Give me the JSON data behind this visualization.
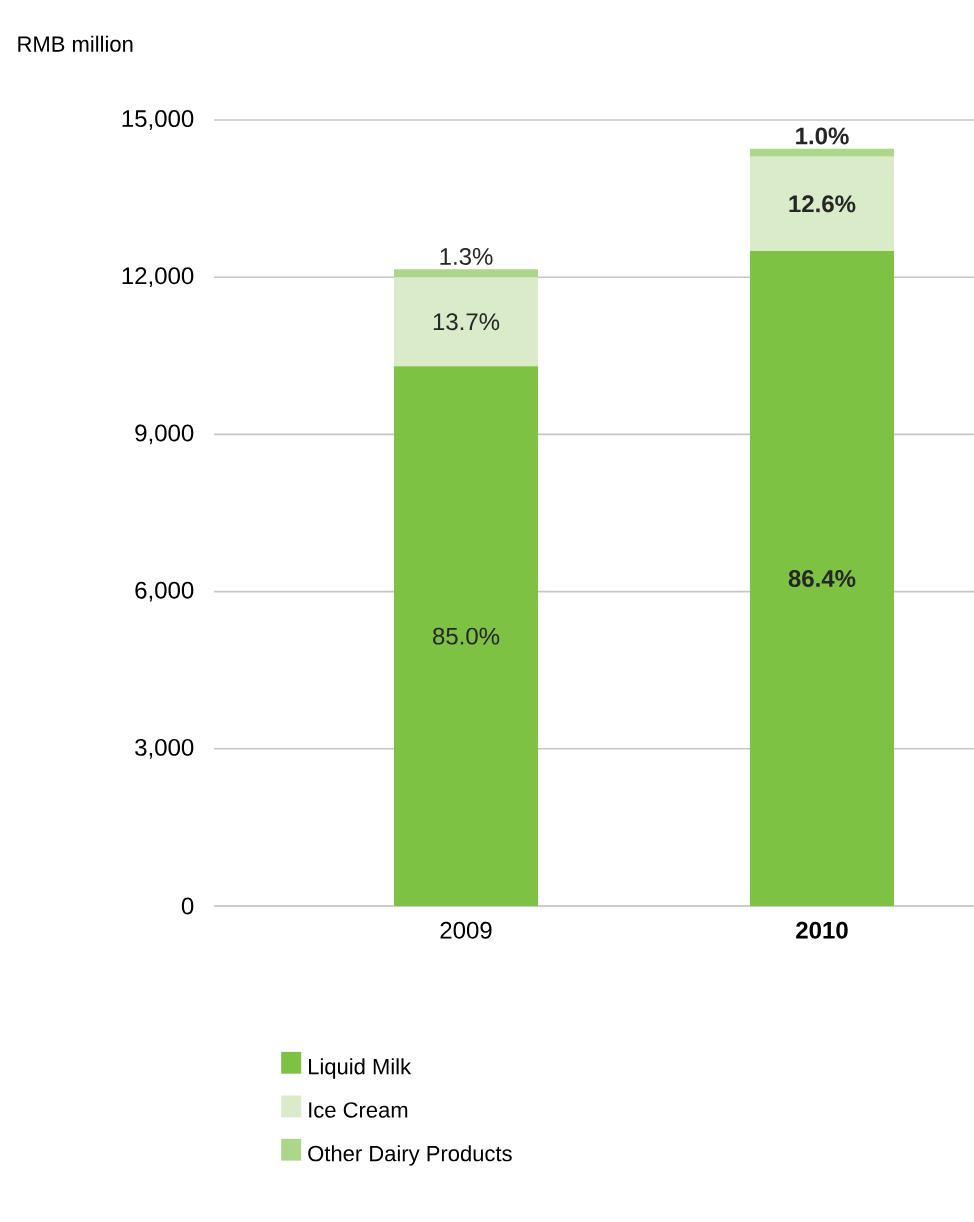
{
  "chart_data": {
    "type": "bar",
    "stacked": true,
    "ylabel": "RMB million",
    "categories": [
      "2009",
      "2010"
    ],
    "series": [
      {
        "name": "Liquid Milk",
        "color": "#7dc242",
        "values": [
          10300,
          12500
        ]
      },
      {
        "name": "Ice Cream",
        "color": "#d9ebc9",
        "values": [
          1700,
          1800
        ]
      },
      {
        "name": "Other Dairy Products",
        "color": "#acd68a",
        "values": [
          150,
          150
        ]
      }
    ],
    "annotations": [
      "85.0%",
      {
        "text": "13.7%",
        "x": "2009",
        "y": 12000
      },
      {
        "text": "1.3%",
        "x": "2009",
        "y": 12150
      },
      "86.4%",
      {
        "text": "12.6%",
        "x": "2010",
        "y": 14300
      },
      {
        "text": "1.0%",
        "x": "2010",
        "y": 14450
      }
    ],
    "ylim": [
      0,
      15000
    ],
    "yticks": [
      {
        "value": 0,
        "label": "0"
      },
      {
        "value": 3000,
        "label": "3,000"
      },
      {
        "value": 6000,
        "label": "6,000"
      },
      {
        "value": 9000,
        "label": "9,000"
      },
      {
        "value": 12000,
        "label": "12,000"
      },
      {
        "value": 15000,
        "label": "15,000"
      }
    ],
    "grid": "y",
    "legend": "bottom"
  }
}
